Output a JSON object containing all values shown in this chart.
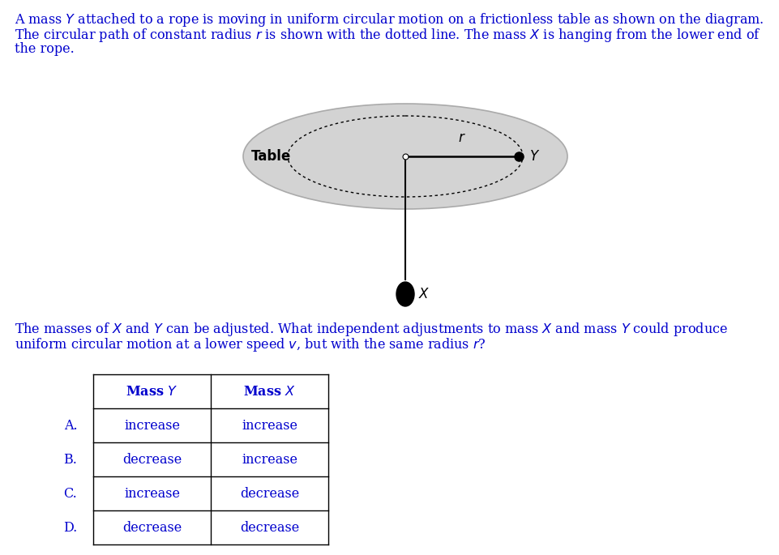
{
  "text_color": "#0000CD",
  "bg_color": "#ffffff",
  "ellipse_fill": "#d3d3d3",
  "ellipse_edge": "#aaaaaa",
  "table_rows": [
    [
      "",
      "Mass $Y$",
      "Mass $X$"
    ],
    [
      "A.",
      "increase",
      "increase"
    ],
    [
      "B.",
      "decrease",
      "increase"
    ],
    [
      "C.",
      "increase",
      "decrease"
    ],
    [
      "D.",
      "decrease",
      "decrease"
    ]
  ],
  "para1_line1": "A mass $Y$ attached to a rope is moving in uniform circular motion on a frictionless table as shown on the diagram.",
  "para1_line2": "The circular path of constant radius $r$ is shown with the dotted line. The mass $X$ is hanging from the lower end of",
  "para1_line3": "the rope.",
  "para2_line1": "The masses of $X$ and $Y$ can be adjusted. What independent adjustments to mass $X$ and mass $Y$ could produce",
  "para2_line2": "uniform circular motion at a lower speed $v$, but with the same radius $r$?"
}
